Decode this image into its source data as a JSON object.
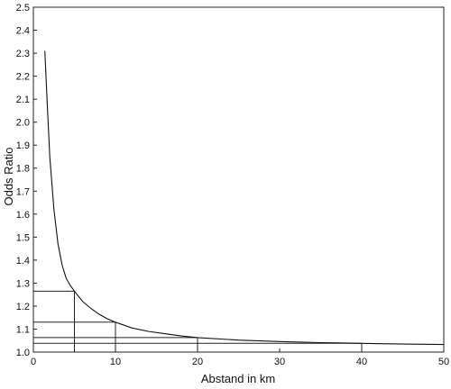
{
  "chart_data": {
    "type": "line",
    "title": "",
    "xlabel": "Abstand in km",
    "ylabel": "Odds Ratio",
    "xlim": [
      0,
      50
    ],
    "ylim": [
      1.0,
      2.5
    ],
    "x_ticks": [
      0,
      10,
      20,
      30,
      40,
      50
    ],
    "y_ticks": [
      1.0,
      1.1,
      1.2,
      1.3,
      1.4,
      1.5,
      1.6,
      1.7,
      1.8,
      1.9,
      2.0,
      2.1,
      2.2,
      2.3,
      2.4,
      2.5
    ],
    "x_tick_labels": [
      "0",
      "10",
      "20",
      "30",
      "40",
      "50"
    ],
    "y_tick_labels": [
      "1.0",
      "1.1",
      "1.2",
      "1.3",
      "1.4",
      "1.5",
      "1.6",
      "1.7",
      "1.8",
      "1.9",
      "2.0",
      "2.1",
      "2.2",
      "2.3",
      "2.4",
      "2.5"
    ],
    "grid": false,
    "series": [
      {
        "x": [
          1.4,
          1.7,
          2,
          2.5,
          3,
          3.5,
          4,
          4.5,
          5,
          6,
          7,
          8,
          9,
          10,
          12,
          14,
          16,
          18,
          20,
          25,
          30,
          35,
          40,
          45,
          50
        ],
        "y": [
          2.31,
          2.07,
          1.85,
          1.62,
          1.47,
          1.38,
          1.32,
          1.29,
          1.265,
          1.22,
          1.19,
          1.165,
          1.145,
          1.13,
          1.105,
          1.09,
          1.08,
          1.07,
          1.063,
          1.052,
          1.046,
          1.041,
          1.038,
          1.035,
          1.033
        ]
      }
    ],
    "reference_lines": [
      {
        "x": 5,
        "y": 1.265
      },
      {
        "x": 10,
        "y": 1.13
      },
      {
        "x": 20,
        "y": 1.063
      },
      {
        "x": 40,
        "y": 1.038
      }
    ]
  }
}
